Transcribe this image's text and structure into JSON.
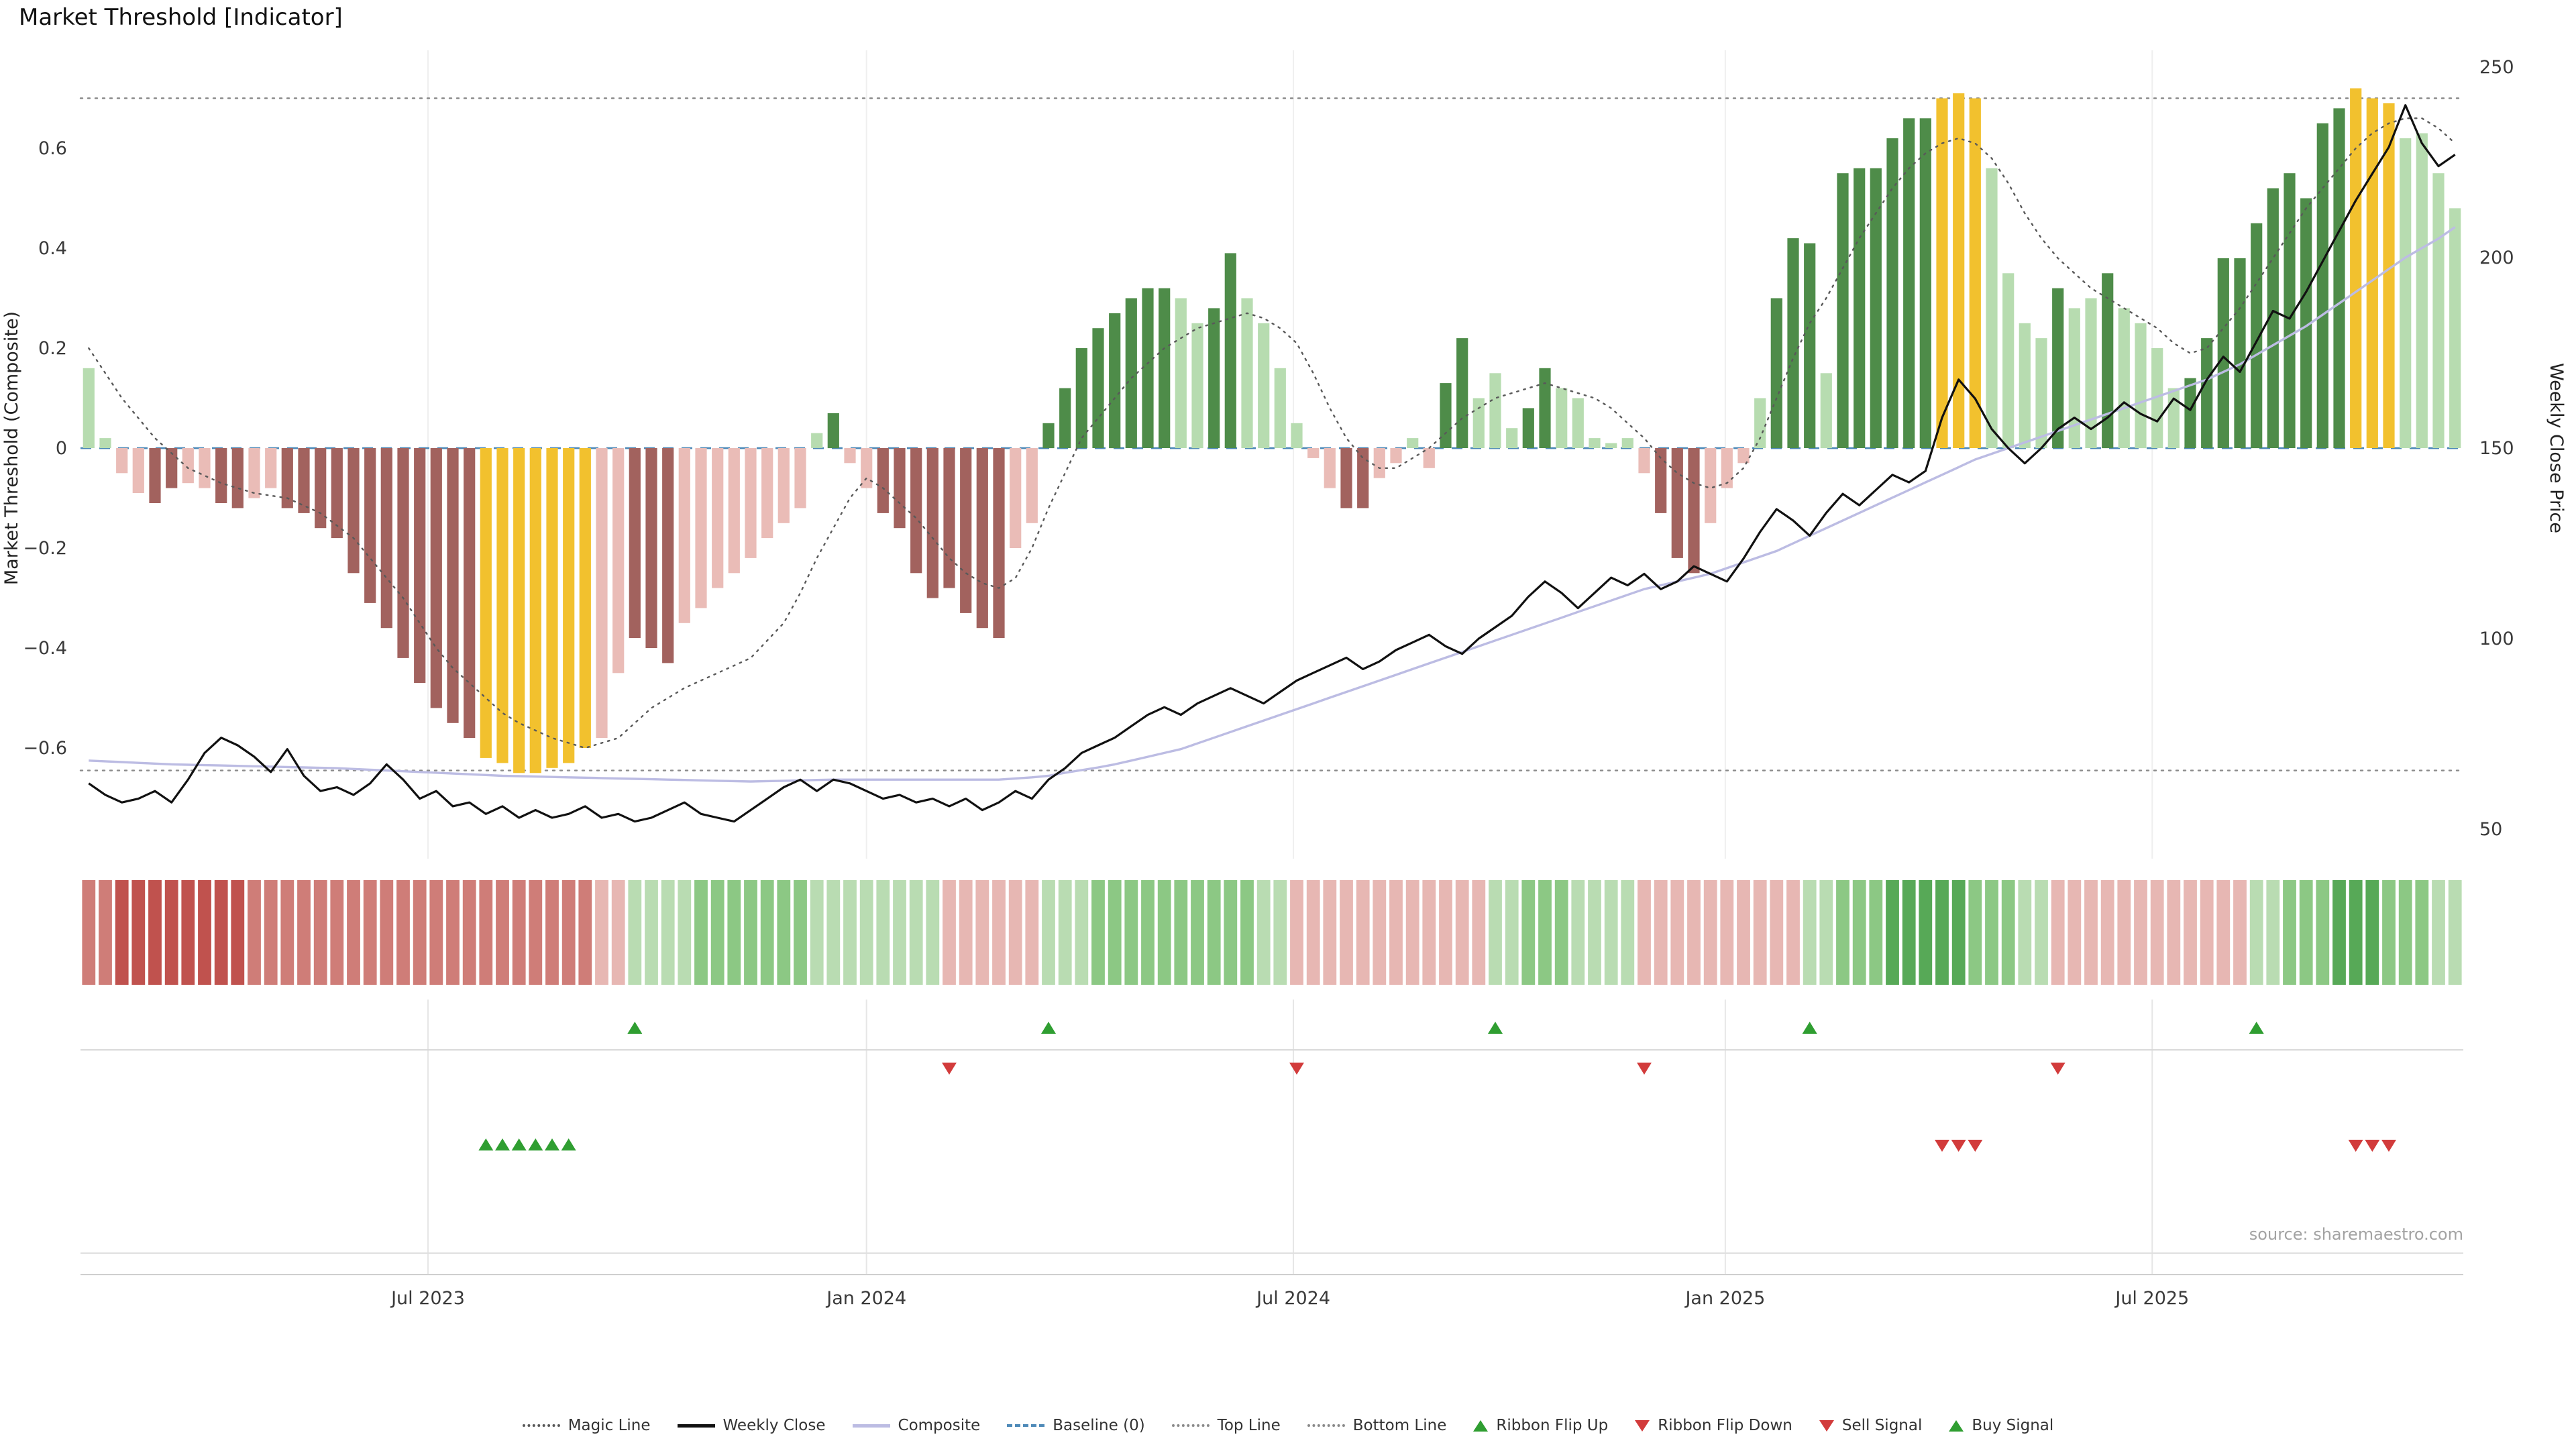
{
  "title": "Market Threshold [Indicator]",
  "source": "source: sharemaestro.com",
  "axes": {
    "left_label": "Market Threshold (Composite)",
    "right_label": "Weekly Close Price",
    "left_ticks": [
      "0.6",
      "0.4",
      "0.2",
      "0",
      "−0.2",
      "−0.4",
      "−0.6"
    ],
    "left_tick_values": [
      0.6,
      0.4,
      0.2,
      0,
      -0.2,
      -0.4,
      -0.6
    ],
    "right_ticks": [
      "250",
      "200",
      "150",
      "100",
      "50"
    ],
    "right_tick_values": [
      250,
      200,
      150,
      100,
      50
    ],
    "x_ticks": [
      "Jul 2023",
      "Jan 2024",
      "Jul 2024",
      "Jan 2025",
      "Jul 2025"
    ],
    "x_tick_weeks": [
      21,
      47.5,
      73.3,
      99.4,
      125.2
    ]
  },
  "colors": {
    "bar_dark_green": "#4e8c49",
    "bar_light_green": "#b7dcb0",
    "bar_dark_red": "#a2625e",
    "bar_light_red": "#eabcb7",
    "bar_gold": "#f2c12e",
    "ribbon_dark_red": "#c0524e",
    "ribbon_mid_red": "#cf7d78",
    "ribbon_light_red": "#e7b7b3",
    "ribbon_light_green": "#b9dcb2",
    "ribbon_mid_green": "#8cc884",
    "ribbon_dark_green": "#57a957",
    "magic_line": "#595959",
    "weekly_close": "#111111",
    "composite": "#bcbce3",
    "baseline": "#4e8ab8",
    "top_bottom": "#8a8a8a",
    "signal_green": "#2f9e31",
    "signal_red": "#d23b3b",
    "grid": "#efefef"
  },
  "chart_data": {
    "type": "mixed",
    "description": "Weekly market-threshold histogram (left axis -0.6..0.6) with weekly close price, composite and magic lines (right axis 50..250), momentum ribbon heatmap strip and buy/sell/ribbon-flip signal markers. 144 weekly points, Feb 2023 - Nov 2025.",
    "n_weeks": 144,
    "top_line": 0.7,
    "bottom_line": -0.645,
    "baseline": 0,
    "threshold": {
      "values": [
        0.16,
        0.02,
        -0.05,
        -0.09,
        -0.11,
        -0.08,
        -0.07,
        -0.08,
        -0.11,
        -0.12,
        -0.1,
        -0.08,
        -0.12,
        -0.13,
        -0.16,
        -0.18,
        -0.25,
        -0.31,
        -0.36,
        -0.42,
        -0.47,
        -0.52,
        -0.55,
        -0.58,
        -0.62,
        -0.63,
        -0.65,
        -0.65,
        -0.64,
        -0.63,
        -0.6,
        -0.58,
        -0.45,
        -0.38,
        -0.4,
        -0.43,
        -0.35,
        -0.32,
        -0.28,
        -0.25,
        -0.22,
        -0.18,
        -0.15,
        -0.12,
        0.03,
        0.07,
        -0.03,
        -0.08,
        -0.13,
        -0.16,
        -0.25,
        -0.3,
        -0.28,
        -0.33,
        -0.36,
        -0.38,
        -0.2,
        -0.15,
        0.05,
        0.12,
        0.2,
        0.24,
        0.27,
        0.3,
        0.32,
        0.32,
        0.3,
        0.25,
        0.28,
        0.39,
        0.3,
        0.25,
        0.16,
        0.05,
        -0.02,
        -0.08,
        -0.12,
        -0.12,
        -0.06,
        -0.03,
        0.02,
        -0.04,
        0.13,
        0.22,
        0.1,
        0.15,
        0.04,
        0.08,
        0.16,
        0.12,
        0.1,
        0.02,
        0.01,
        0.02,
        -0.05,
        -0.13,
        -0.22,
        -0.25,
        -0.15,
        -0.08,
        -0.03,
        0.1,
        0.3,
        0.42,
        0.41,
        0.15,
        0.55,
        0.56,
        0.56,
        0.62,
        0.66,
        0.66,
        0.7,
        0.71,
        0.7,
        0.56,
        0.35,
        0.25,
        0.22,
        0.32,
        0.28,
        0.3,
        0.35,
        0.28,
        0.25,
        0.2,
        0.12,
        0.14,
        0.22,
        0.38,
        0.38,
        0.45,
        0.52,
        0.55,
        0.5,
        0.65,
        0.68,
        0.72,
        0.7,
        0.69,
        0.62,
        0.63,
        0.55,
        0.48
      ],
      "colors": [
        "lg",
        "lg",
        "lr",
        "lr",
        "dr",
        "dr",
        "lr",
        "lr",
        "dr",
        "dr",
        "lr",
        "lr",
        "dr",
        "dr",
        "dr",
        "dr",
        "dr",
        "dr",
        "dr",
        "dr",
        "dr",
        "dr",
        "dr",
        "dr",
        "au",
        "au",
        "au",
        "au",
        "au",
        "au",
        "au",
        "lr",
        "lr",
        "dr",
        "dr",
        "dr",
        "lr",
        "lr",
        "lr",
        "lr",
        "lr",
        "lr",
        "lr",
        "lr",
        "lg",
        "dg",
        "lr",
        "lr",
        "dr",
        "dr",
        "dr",
        "dr",
        "dr",
        "dr",
        "dr",
        "dr",
        "lr",
        "lr",
        "dg",
        "dg",
        "dg",
        "dg",
        "dg",
        "dg",
        "dg",
        "dg",
        "lg",
        "lg",
        "dg",
        "dg",
        "lg",
        "lg",
        "lg",
        "lg",
        "lr",
        "lr",
        "dr",
        "dr",
        "lr",
        "lr",
        "lg",
        "lr",
        "dg",
        "dg",
        "lg",
        "lg",
        "lg",
        "dg",
        "dg",
        "lg",
        "lg",
        "lg",
        "lg",
        "lg",
        "lr",
        "dr",
        "dr",
        "dr",
        "lr",
        "lr",
        "lr",
        "lg",
        "dg",
        "dg",
        "dg",
        "lg",
        "dg",
        "dg",
        "dg",
        "dg",
        "dg",
        "dg",
        "au",
        "au",
        "au",
        "lg",
        "lg",
        "lg",
        "lg",
        "dg",
        "lg",
        "lg",
        "dg",
        "lg",
        "lg",
        "lg",
        "lg",
        "dg",
        "dg",
        "dg",
        "dg",
        "dg",
        "dg",
        "dg",
        "dg",
        "dg",
        "dg",
        "au",
        "au",
        "au",
        "lg",
        "lg",
        "lg",
        "lg"
      ]
    },
    "weekly_close": [
      62,
      59,
      57,
      58,
      60,
      57,
      63,
      70,
      74,
      72,
      69,
      65,
      71,
      64,
      60,
      61,
      59,
      62,
      67,
      63,
      58,
      60,
      56,
      57,
      54,
      56,
      53,
      55,
      53,
      54,
      56,
      53,
      54,
      52,
      53,
      55,
      57,
      54,
      53,
      52,
      55,
      58,
      61,
      63,
      60,
      63,
      62,
      60,
      58,
      59,
      57,
      58,
      56,
      58,
      55,
      57,
      60,
      58,
      63,
      66,
      70,
      72,
      74,
      77,
      80,
      82,
      80,
      83,
      85,
      87,
      85,
      83,
      86,
      89,
      91,
      93,
      95,
      92,
      94,
      97,
      99,
      101,
      98,
      96,
      100,
      103,
      106,
      111,
      115,
      112,
      108,
      112,
      116,
      114,
      117,
      113,
      115,
      119,
      117,
      115,
      121,
      128,
      134,
      131,
      127,
      133,
      138,
      135,
      139,
      143,
      141,
      144,
      158,
      168,
      163,
      155,
      150,
      146,
      150,
      155,
      158,
      155,
      158,
      162,
      159,
      157,
      163,
      160,
      168,
      174,
      170,
      178,
      186,
      184,
      191,
      199,
      207,
      215,
      222,
      229,
      240,
      230,
      224,
      227
    ],
    "composite": [
      68,
      67.8,
      67.6,
      67.4,
      67.2,
      67,
      66.9,
      66.8,
      66.7,
      66.6,
      66.5,
      66.4,
      66.3,
      66.2,
      66.1,
      66,
      65.8,
      65.6,
      65.4,
      65.2,
      65,
      64.8,
      64.6,
      64.4,
      64.2,
      64,
      63.9,
      63.8,
      63.7,
      63.6,
      63.5,
      63.4,
      63.3,
      63.2,
      63.1,
      63,
      62.9,
      62.8,
      62.7,
      62.6,
      62.5,
      62.6,
      62.7,
      62.8,
      62.9,
      63,
      63,
      63,
      63,
      63,
      63,
      63,
      63,
      63,
      63,
      63,
      63.3,
      63.6,
      64,
      64.8,
      65.5,
      66.2,
      67,
      68,
      69,
      70,
      71,
      72.5,
      74,
      75.5,
      77,
      78.5,
      80,
      81.5,
      83,
      84.5,
      86,
      87.5,
      89,
      90.5,
      92,
      93.5,
      95,
      96.5,
      98,
      99.5,
      101,
      102.5,
      104,
      105.5,
      107,
      108.5,
      110,
      111.5,
      113,
      114,
      115,
      116,
      117,
      118.5,
      120,
      121.5,
      123,
      125,
      127,
      129,
      131,
      133,
      135,
      137,
      139,
      141,
      143,
      145,
      147,
      148.5,
      150,
      151.5,
      153,
      154.5,
      156,
      157.5,
      159,
      160.5,
      162,
      163.5,
      165,
      166.5,
      168,
      170,
      172,
      174.5,
      177,
      179.5,
      182,
      185,
      188,
      191,
      194,
      197,
      200,
      202.5,
      205,
      208
    ],
    "magic_line": [
      0.2,
      0.15,
      0.1,
      0.06,
      0.02,
      -0.01,
      -0.04,
      -0.055,
      -0.07,
      -0.08,
      -0.09,
      -0.095,
      -0.1,
      -0.115,
      -0.13,
      -0.155,
      -0.18,
      -0.22,
      -0.26,
      -0.3,
      -0.35,
      -0.4,
      -0.44,
      -0.47,
      -0.5,
      -0.53,
      -0.55,
      -0.565,
      -0.58,
      -0.59,
      -0.6,
      -0.59,
      -0.58,
      -0.55,
      -0.52,
      -0.5,
      -0.48,
      -0.465,
      -0.45,
      -0.435,
      -0.42,
      -0.385,
      -0.35,
      -0.29,
      -0.22,
      -0.16,
      -0.1,
      -0.06,
      -0.08,
      -0.11,
      -0.14,
      -0.18,
      -0.22,
      -0.25,
      -0.27,
      -0.28,
      -0.26,
      -0.2,
      -0.12,
      -0.05,
      0.02,
      0.06,
      0.1,
      0.14,
      0.17,
      0.2,
      0.22,
      0.24,
      0.25,
      0.26,
      0.27,
      0.26,
      0.24,
      0.21,
      0.15,
      0.08,
      0.02,
      -0.02,
      -0.04,
      -0.04,
      -0.02,
      0.0,
      0.03,
      0.06,
      0.08,
      0.1,
      0.11,
      0.12,
      0.13,
      0.12,
      0.11,
      0.1,
      0.08,
      0.05,
      0.02,
      -0.02,
      -0.05,
      -0.07,
      -0.08,
      -0.07,
      -0.04,
      0.02,
      0.1,
      0.18,
      0.25,
      0.3,
      0.36,
      0.42,
      0.47,
      0.52,
      0.56,
      0.59,
      0.61,
      0.62,
      0.61,
      0.58,
      0.53,
      0.47,
      0.42,
      0.38,
      0.35,
      0.32,
      0.3,
      0.28,
      0.26,
      0.24,
      0.21,
      0.19,
      0.2,
      0.24,
      0.28,
      0.33,
      0.38,
      0.43,
      0.48,
      0.52,
      0.56,
      0.6,
      0.63,
      0.65,
      0.66,
      0.66,
      0.64,
      0.61
    ],
    "ribbon": [
      -2,
      -2,
      -3,
      -3,
      -3,
      -3,
      -3,
      -3,
      -3,
      -3,
      -2,
      -2,
      -2,
      -2,
      -2,
      -2,
      -2,
      -2,
      -2,
      -2,
      -2,
      -2,
      -2,
      -2,
      -2,
      -2,
      -2,
      -2,
      -2,
      -2,
      -2,
      -1,
      -1,
      1,
      1,
      1,
      1,
      2,
      2,
      2,
      2,
      2,
      2,
      2,
      1,
      1,
      1,
      1,
      1,
      1,
      1,
      1,
      -1,
      -1,
      -1,
      -1,
      -1,
      -1,
      1,
      1,
      1,
      2,
      2,
      2,
      2,
      2,
      2,
      2,
      2,
      2,
      2,
      1,
      1,
      -1,
      -1,
      -1,
      -1,
      -1,
      -1,
      -1,
      -1,
      -1,
      -1,
      -1,
      -1,
      1,
      1,
      2,
      2,
      2,
      1,
      1,
      1,
      1,
      -1,
      -1,
      -1,
      -1,
      -1,
      -1,
      -1,
      -1,
      -1,
      -1,
      1,
      1,
      2,
      2,
      2,
      3,
      3,
      3,
      3,
      3,
      2,
      2,
      2,
      1,
      1,
      -1,
      -1,
      -1,
      -1,
      -1,
      -1,
      -1,
      -1,
      -1,
      -1,
      -1,
      -1,
      1,
      1,
      2,
      2,
      2,
      3,
      3,
      3,
      2,
      2,
      2,
      1,
      1
    ],
    "signals": {
      "ribbon_flip_up_weeks": [
        33,
        58,
        85,
        104,
        131
      ],
      "ribbon_flip_down_weeks": [
        52,
        73,
        94,
        119
      ],
      "sell_signal_weeks": [
        112,
        113,
        114,
        137,
        138,
        139
      ],
      "buy_signal_weeks": [
        24,
        25,
        26,
        27,
        28,
        29
      ]
    }
  },
  "legend": {
    "items": [
      {
        "label": "Magic Line",
        "marker": "dotted-line",
        "color": "#595959"
      },
      {
        "label": "Weekly Close",
        "marker": "solid-line",
        "color": "#111111"
      },
      {
        "label": "Composite",
        "marker": "solid-line",
        "color": "#bcbce3"
      },
      {
        "label": "Baseline (0)",
        "marker": "dashed-line",
        "color": "#4e8ab8"
      },
      {
        "label": "Top Line",
        "marker": "dotted-line",
        "color": "#8a8a8a"
      },
      {
        "label": "Bottom Line",
        "marker": "dotted-line",
        "color": "#8a8a8a"
      },
      {
        "label": "Ribbon Flip Up",
        "marker": "triangle-up",
        "color": "#2f9e31"
      },
      {
        "label": "Ribbon Flip Down",
        "marker": "triangle-down",
        "color": "#d23b3b"
      },
      {
        "label": "Sell Signal",
        "marker": "triangle-down",
        "color": "#d23b3b"
      },
      {
        "label": "Buy Signal",
        "marker": "triangle-up",
        "color": "#2f9e31"
      }
    ]
  }
}
